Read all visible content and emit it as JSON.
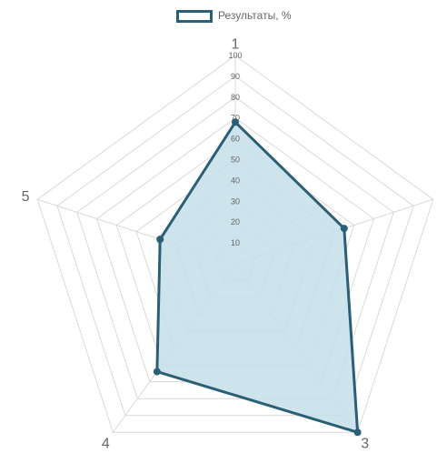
{
  "legend": {
    "label": "Результаты, %"
  },
  "colors": {
    "line": "#2b5f75",
    "fill": "#c5dfea",
    "grid": "#d9d9d9"
  },
  "chart_data": {
    "type": "radar",
    "labels": [
      "1",
      "2",
      "3",
      "4",
      "5"
    ],
    "series": [
      {
        "name": "Результаты, %",
        "values": [
          68,
          55,
          100,
          64,
          38
        ]
      }
    ],
    "r_min": 0,
    "r_max": 100,
    "ticks": [
      10,
      20,
      30,
      40,
      50,
      60,
      70,
      80,
      90,
      100
    ],
    "grid": true,
    "legend_position": "top"
  }
}
